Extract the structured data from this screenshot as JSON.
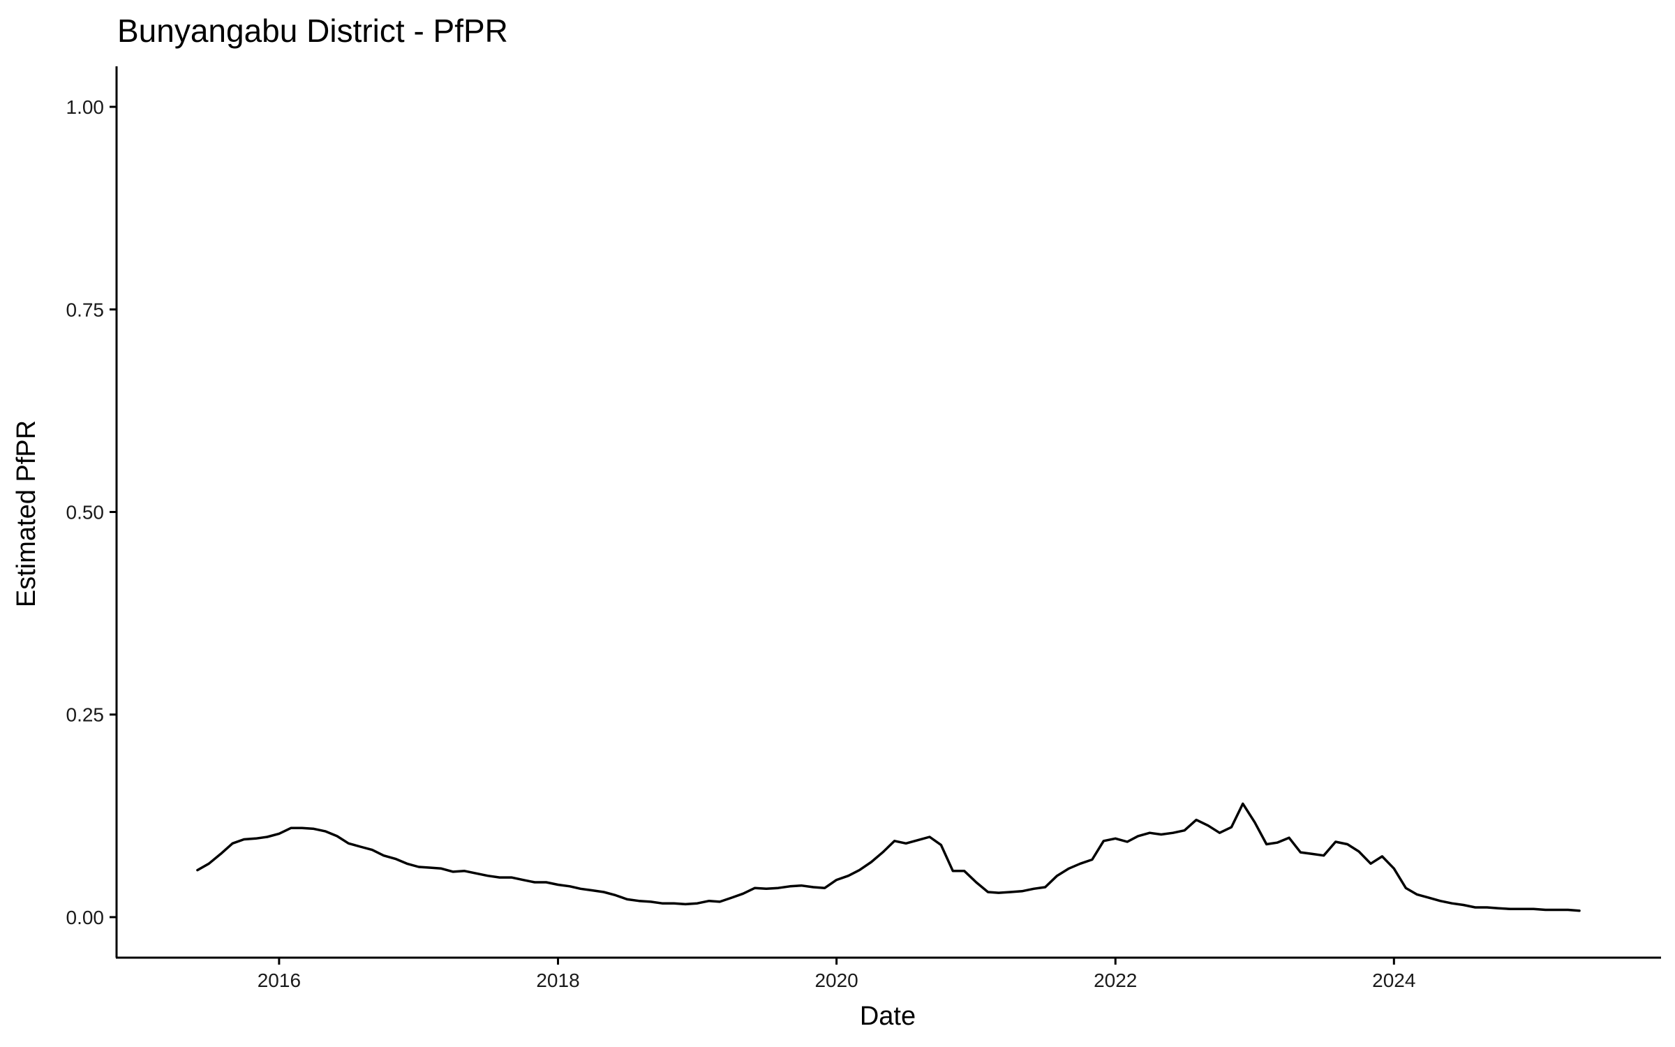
{
  "chart_data": {
    "type": "line",
    "title": "Bunyangabu District - PfPR",
    "xlabel": "Date",
    "ylabel": "Estimated PfPR",
    "xlim": [
      "2014-11-01",
      "2025-12-01"
    ],
    "ylim": [
      -0.05,
      1.05
    ],
    "x_ticks": [
      "2016-01-01",
      "2018-01-01",
      "2020-01-01",
      "2022-01-01",
      "2024-01-01"
    ],
    "x_tick_labels": [
      "2016",
      "2018",
      "2020",
      "2022",
      "2024"
    ],
    "y_ticks": [
      0,
      0.25,
      0.5,
      0.75,
      1.0
    ],
    "y_tick_labels": [
      "0.00",
      "0.25",
      "0.50",
      "0.75",
      "1.00"
    ],
    "grid": false,
    "series": [
      {
        "color": "#000000",
        "x": [
          "2015-06-01",
          "2015-07-01",
          "2015-08-01",
          "2015-09-01",
          "2015-10-01",
          "2015-11-01",
          "2015-12-01",
          "2016-01-01",
          "2016-02-01",
          "2016-03-01",
          "2016-04-01",
          "2016-05-01",
          "2016-06-01",
          "2016-07-01",
          "2016-08-01",
          "2016-09-01",
          "2016-10-01",
          "2016-11-01",
          "2016-12-01",
          "2017-01-01",
          "2017-02-01",
          "2017-03-01",
          "2017-04-01",
          "2017-05-01",
          "2017-06-01",
          "2017-07-01",
          "2017-08-01",
          "2017-09-01",
          "2017-10-01",
          "2017-11-01",
          "2017-12-01",
          "2018-01-01",
          "2018-02-01",
          "2018-03-01",
          "2018-04-01",
          "2018-05-01",
          "2018-06-01",
          "2018-07-01",
          "2018-08-01",
          "2018-09-01",
          "2018-10-01",
          "2018-11-01",
          "2018-12-01",
          "2019-01-01",
          "2019-02-01",
          "2019-03-01",
          "2019-04-01",
          "2019-05-01",
          "2019-06-01",
          "2019-07-01",
          "2019-08-01",
          "2019-09-01",
          "2019-10-01",
          "2019-11-01",
          "2019-12-01",
          "2020-01-01",
          "2020-02-01",
          "2020-03-01",
          "2020-04-01",
          "2020-05-01",
          "2020-06-01",
          "2020-07-01",
          "2020-08-01",
          "2020-09-01",
          "2020-10-01",
          "2020-11-01",
          "2020-12-01",
          "2021-01-01",
          "2021-02-01",
          "2021-03-01",
          "2021-04-01",
          "2021-05-01",
          "2021-06-01",
          "2021-07-01",
          "2021-08-01",
          "2021-09-01",
          "2021-10-01",
          "2021-11-01",
          "2021-12-01",
          "2022-01-01",
          "2022-02-01",
          "2022-03-01",
          "2022-04-01",
          "2022-05-01",
          "2022-06-01",
          "2022-07-01",
          "2022-08-01",
          "2022-09-01",
          "2022-10-01",
          "2022-11-01",
          "2022-12-01",
          "2023-01-01",
          "2023-02-01",
          "2023-03-01",
          "2023-04-01",
          "2023-05-01",
          "2023-06-01",
          "2023-07-01",
          "2023-08-01",
          "2023-09-01",
          "2023-10-01",
          "2023-11-01",
          "2023-12-01",
          "2024-01-01",
          "2024-02-01",
          "2024-03-01",
          "2024-04-01",
          "2024-05-01",
          "2024-06-01",
          "2024-07-01",
          "2024-08-01",
          "2024-09-01",
          "2024-10-01",
          "2024-11-01",
          "2024-12-01",
          "2025-01-01",
          "2025-02-01",
          "2025-03-01",
          "2025-04-01",
          "2025-05-01"
        ],
        "values": [
          0.058,
          0.066,
          0.078,
          0.091,
          0.096,
          0.097,
          0.099,
          0.103,
          0.11,
          0.11,
          0.109,
          0.106,
          0.1,
          0.091,
          0.087,
          0.083,
          0.076,
          0.072,
          0.066,
          0.062,
          0.061,
          0.06,
          0.056,
          0.057,
          0.054,
          0.051,
          0.049,
          0.049,
          0.046,
          0.043,
          0.043,
          0.04,
          0.038,
          0.035,
          0.033,
          0.031,
          0.027,
          0.022,
          0.02,
          0.019,
          0.017,
          0.017,
          0.016,
          0.017,
          0.02,
          0.019,
          0.024,
          0.029,
          0.036,
          0.035,
          0.036,
          0.038,
          0.039,
          0.037,
          0.036,
          0.046,
          0.051,
          0.058,
          0.068,
          0.08,
          0.094,
          0.091,
          0.095,
          0.099,
          0.089,
          0.057,
          0.057,
          0.043,
          0.031,
          0.03,
          0.031,
          0.032,
          0.035,
          0.037,
          0.051,
          0.06,
          0.066,
          0.071,
          0.094,
          0.097,
          0.093,
          0.1,
          0.104,
          0.102,
          0.104,
          0.107,
          0.12,
          0.113,
          0.104,
          0.111,
          0.14,
          0.117,
          0.09,
          0.092,
          0.098,
          0.08,
          0.078,
          0.076,
          0.093,
          0.09,
          0.081,
          0.066,
          0.075,
          0.06,
          0.036,
          0.028,
          0.024,
          0.02,
          0.017,
          0.015,
          0.012,
          0.012,
          0.011,
          0.01,
          0.01,
          0.01,
          0.009,
          0.009,
          0.009,
          0.008
        ]
      }
    ]
  }
}
